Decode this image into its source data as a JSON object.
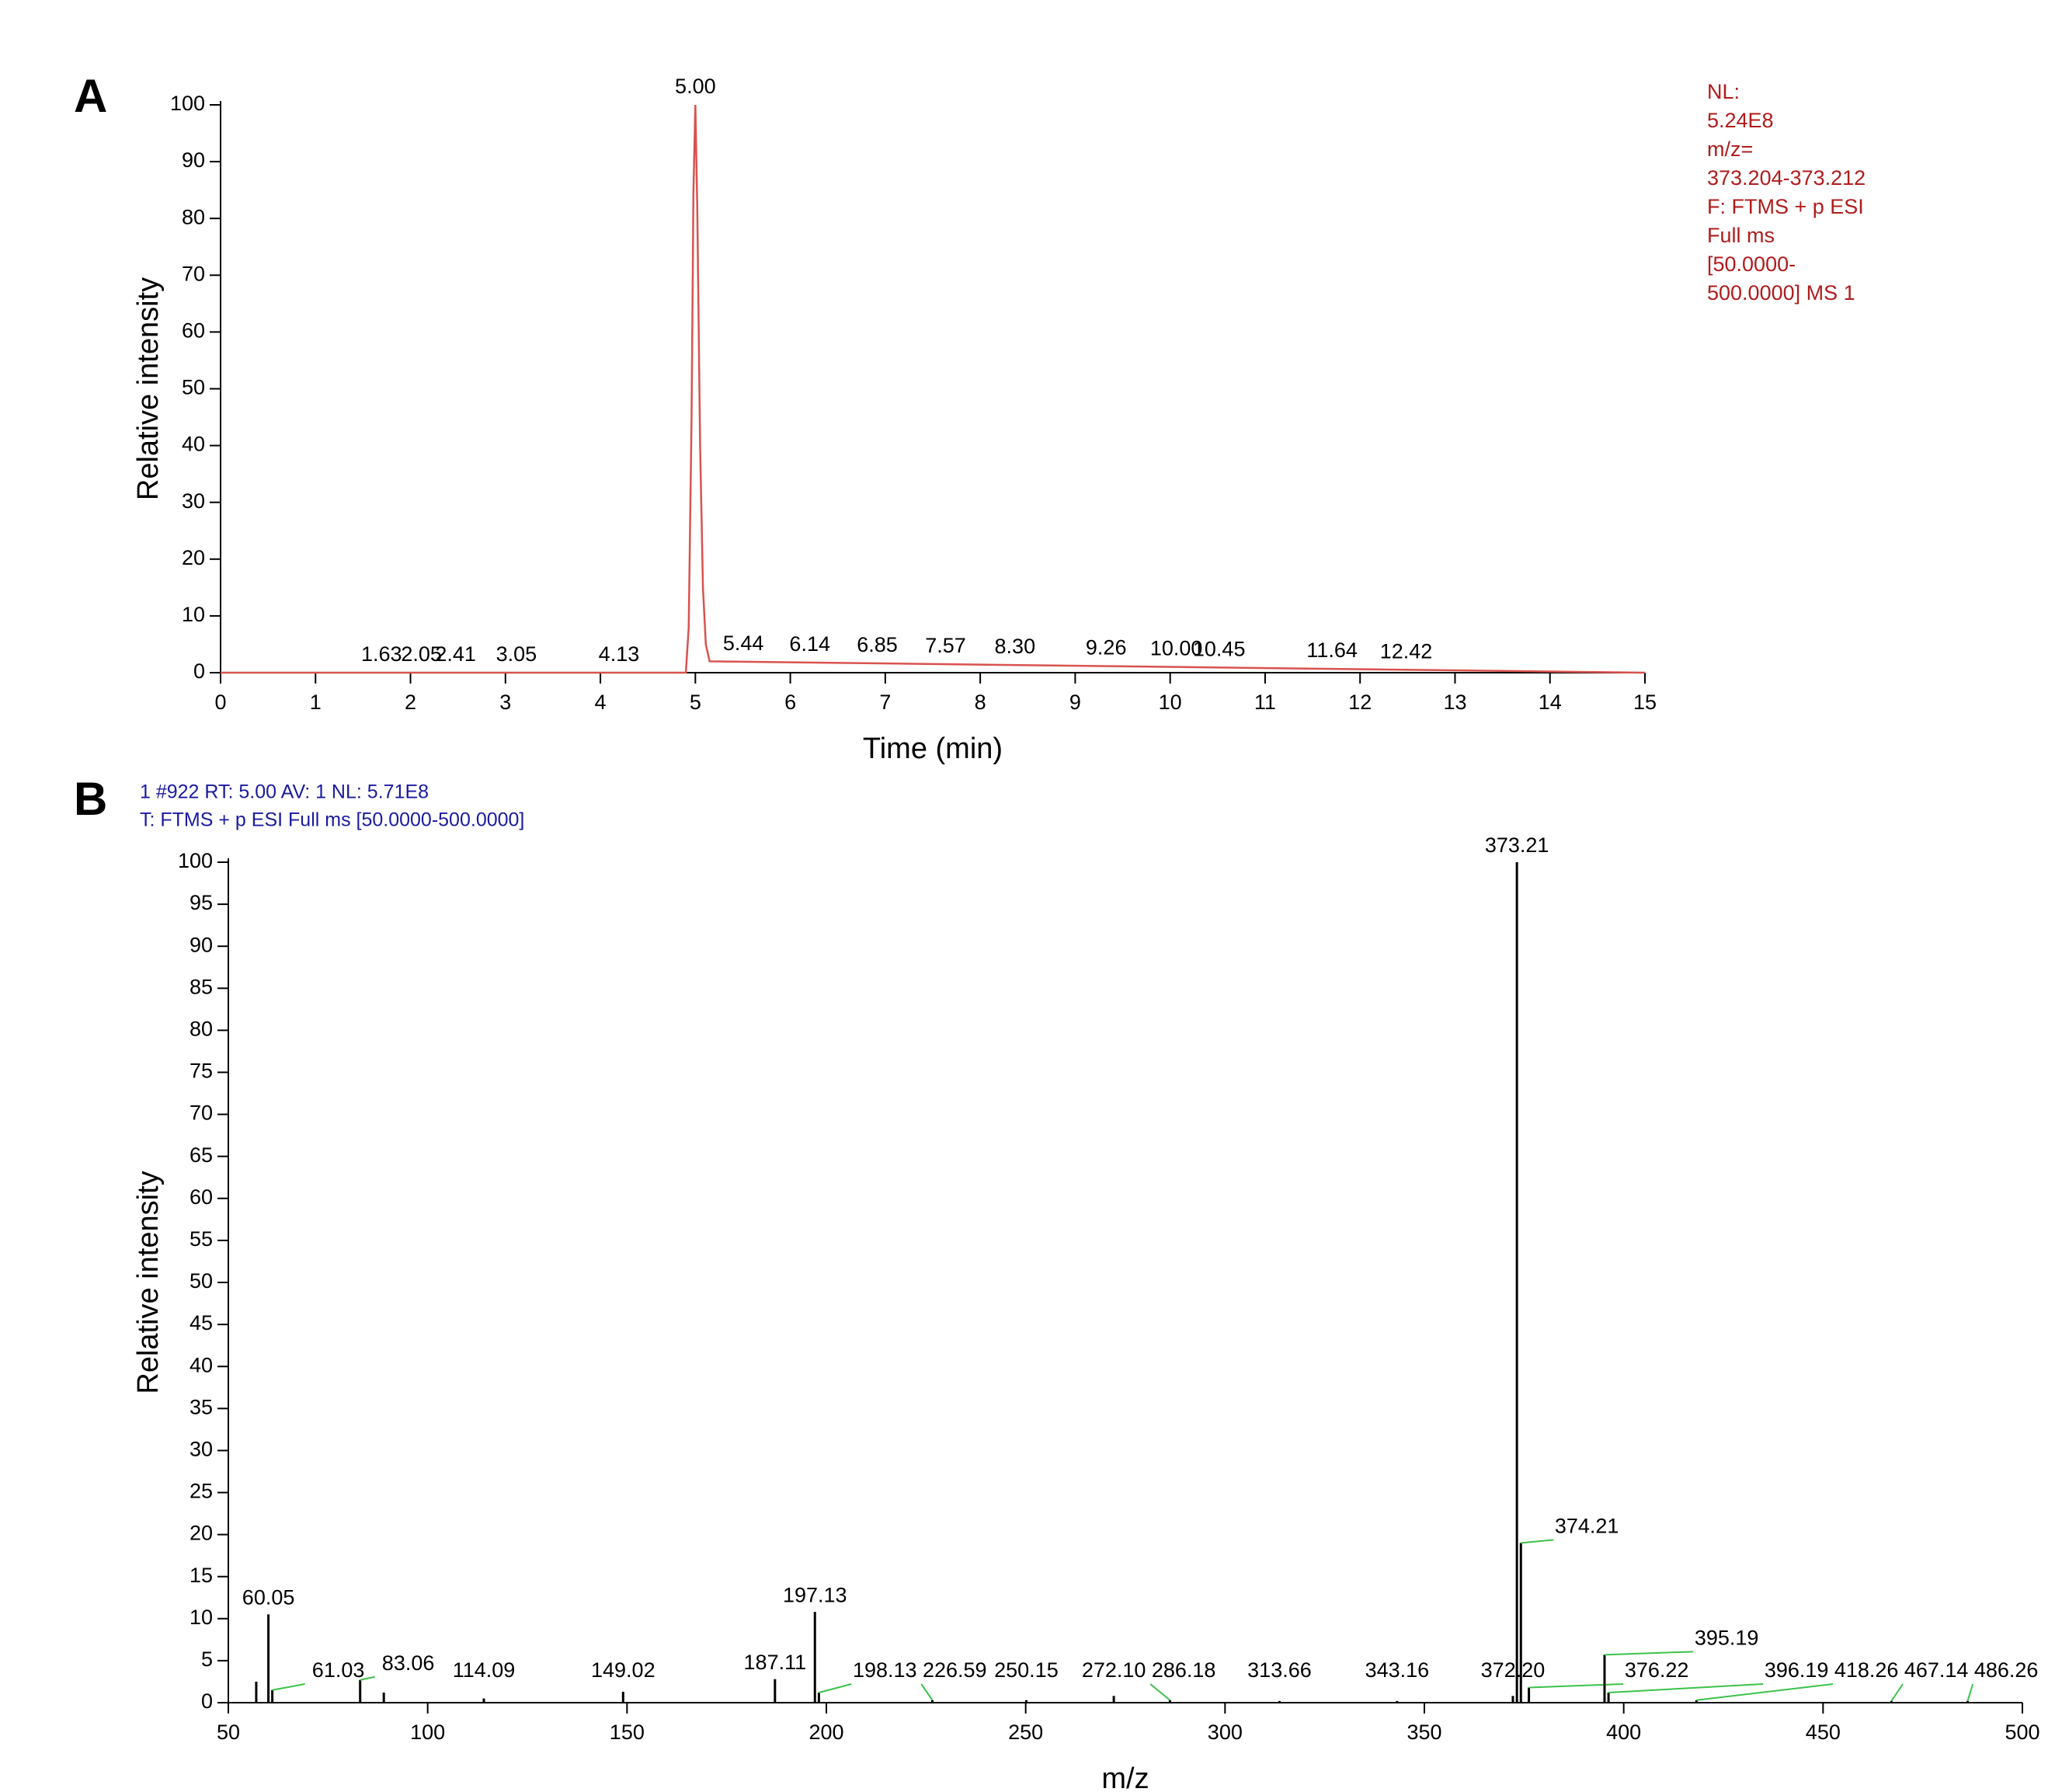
{
  "chart_data": [
    {
      "type": "line",
      "panel": "A",
      "x_label": "Time (min)",
      "y_label": "Relative intensity",
      "color": "#d9534f",
      "x": [
        0,
        4.9,
        4.93,
        4.96,
        4.98,
        5.0,
        5.02,
        5.05,
        5.08,
        5.11,
        5.15,
        15
      ],
      "y": [
        0,
        0,
        8,
        45,
        85,
        100,
        82,
        40,
        15,
        5,
        2,
        0
      ],
      "peaks": [
        1.63,
        2.05,
        2.41,
        3.05,
        4.13,
        {
          "value": 5,
          "label": "5.00"
        },
        5.44,
        6.14,
        6.85,
        7.57,
        {
          "value": 8.3,
          "label": "8.30"
        },
        9.26,
        {
          "value": 10,
          "label": "10.00"
        },
        10.45,
        11.64,
        12.42
      ],
      "annotation_lines": [
        "NL:",
        "5.24E8",
        "m/z=",
        "373.204-373.212",
        "F: FTMS + p ESI",
        "Full ms",
        "[50.0000-",
        "500.0000]  MS 1"
      ],
      "xlim": [
        0,
        15
      ],
      "xticks": [
        0,
        1,
        2,
        3,
        4,
        5,
        6,
        7,
        8,
        9,
        10,
        11,
        12,
        13,
        14,
        15
      ],
      "ylim": [
        0,
        100
      ],
      "yticks": [
        0,
        10,
        20,
        30,
        40,
        50,
        60,
        70,
        80,
        90,
        100
      ]
    },
    {
      "type": "bar",
      "panel": "B",
      "x_label": "m/z",
      "y_label": "Relative intensity",
      "color": "#000000",
      "header_lines": [
        "1 #922  RT: 5.00  AV: 1  NL: 5.71E8",
        "T: FTMS + p ESI Full ms [50.0000-500.0000]"
      ],
      "x": [
        57.0,
        60.05,
        61.03,
        83.06,
        89.0,
        114.09,
        149.02,
        187.11,
        197.13,
        198.13,
        226.59,
        250.15,
        272.1,
        286.18,
        313.66,
        343.16,
        372.2,
        373.21,
        374.21,
        376.22,
        395.19,
        396.19,
        418.26,
        467.14,
        486.26
      ],
      "values": [
        2.5,
        10.5,
        1.5,
        2.7,
        1.2,
        0.5,
        1.3,
        2.8,
        10.8,
        1.2,
        0.3,
        0.3,
        0.8,
        0.3,
        0.2,
        0.2,
        0.8,
        100,
        19,
        1.8,
        5.7,
        1.2,
        0.3,
        0.2,
        0.2
      ],
      "peak_labels": [
        null,
        "60.05",
        "61.03",
        "83.06",
        null,
        "114.09",
        "149.02",
        "187.11",
        "197.13",
        "198.13",
        "226.59",
        "250.15",
        "272.10",
        "286.18",
        "313.66",
        "343.16",
        "372.20",
        "373.21",
        "374.21",
        "376.22",
        "395.19",
        "396.19",
        "418.26",
        "467.14",
        "486.26"
      ],
      "xlim": [
        50,
        500
      ],
      "xticks": [
        50,
        100,
        150,
        200,
        250,
        300,
        350,
        400,
        450,
        500
      ],
      "ylim": [
        0,
        100
      ],
      "yticks": [
        0,
        5,
        10,
        15,
        20,
        25,
        30,
        35,
        40,
        45,
        50,
        55,
        60,
        65,
        70,
        75,
        80,
        85,
        90,
        95,
        100
      ]
    }
  ]
}
